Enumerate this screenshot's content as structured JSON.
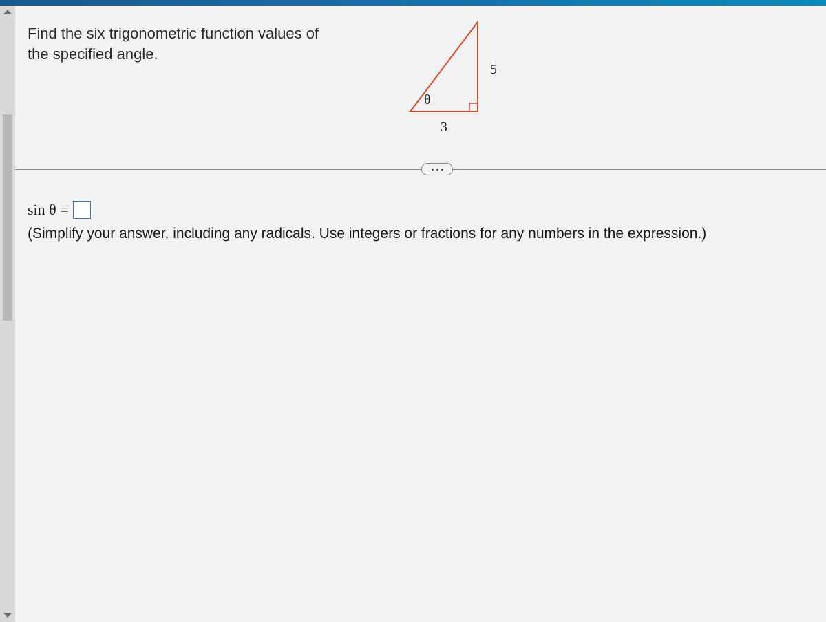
{
  "question": {
    "line1": "Find the six trigonometric function values of",
    "line2": "the specified angle."
  },
  "triangle": {
    "hypotenuse_label": "5",
    "adjacent_label": "3",
    "angle_label": "θ",
    "stroke_color": "#d84a2a",
    "stroke_width": 2,
    "vertices": {
      "A": [
        14,
        140
      ],
      "B": [
        112,
        140
      ],
      "C": [
        112,
        10
      ]
    },
    "right_angle_at": "B",
    "theta_at": "A",
    "label_positions": {
      "hypotenuse": [
        130,
        68
      ],
      "adjacent": [
        58,
        152
      ],
      "theta": [
        34,
        112
      ]
    },
    "right_angle_box_size": 12
  },
  "answer": {
    "lhs": "sin θ =",
    "instruction": "(Simplify your answer, including any radicals. Use integers or fractions for any numbers in the expression.)"
  },
  "colors": {
    "page_bg": "#f2f2f2",
    "text": "#1a1a1a",
    "input_border": "#3a7aa8",
    "divider": "#888888"
  }
}
